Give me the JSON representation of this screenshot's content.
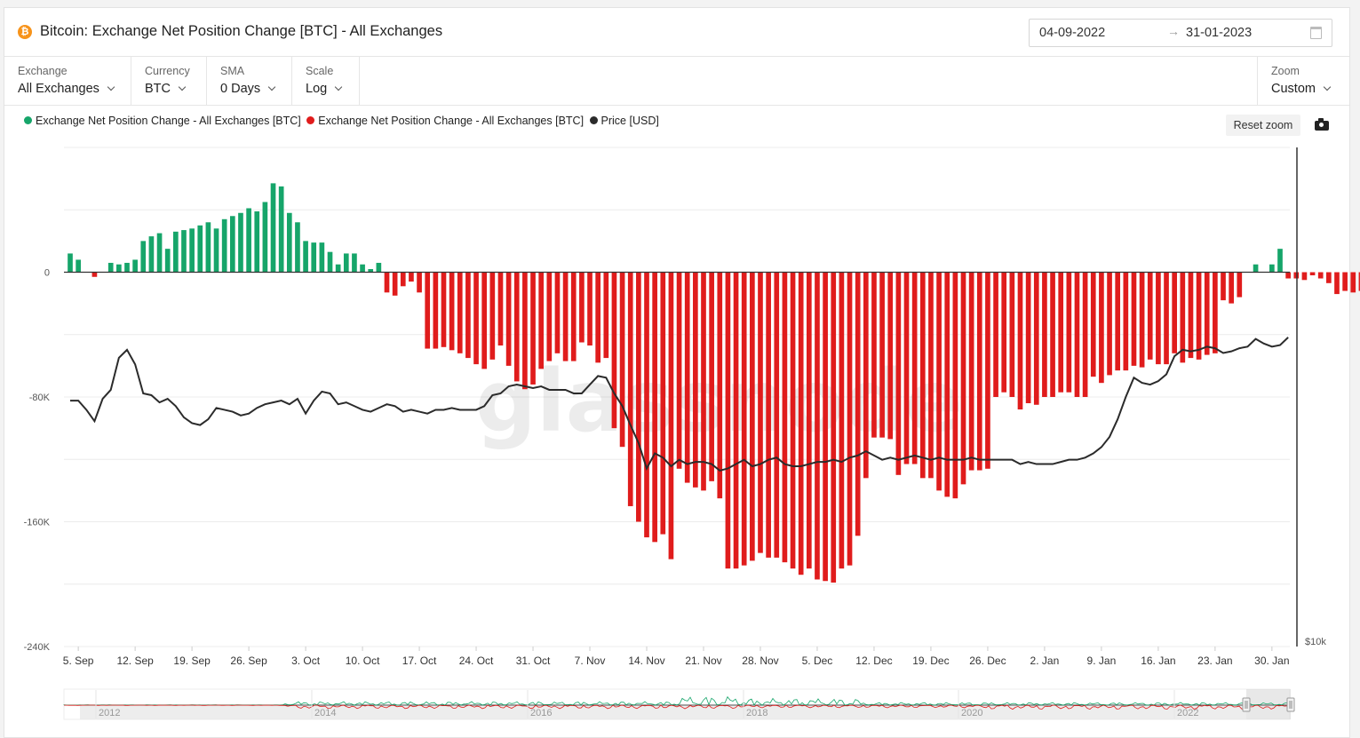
{
  "header": {
    "title": "Bitcoin: Exchange Net Position Change [BTC] - All Exchanges",
    "icon": "bitcoin-icon",
    "date_start": "04-09-2022",
    "date_arrow": "→",
    "date_end": "31-01-2023"
  },
  "controls": {
    "exchange": {
      "label": "Exchange",
      "value": "All Exchanges"
    },
    "currency": {
      "label": "Currency",
      "value": "BTC"
    },
    "sma": {
      "label": "SMA",
      "value": "0 Days"
    },
    "scale": {
      "label": "Scale",
      "value": "Log"
    },
    "zoom": {
      "label": "Zoom",
      "value": "Custom"
    }
  },
  "toolbar": {
    "reset_zoom": "Reset zoom",
    "camera": "camera-icon"
  },
  "watermark": "glassnode",
  "colors": {
    "positive": "#16a56a",
    "negative": "#e01c1c",
    "price": "#2b2b2b",
    "bitcoin": "#f7931a"
  },
  "chart_data": {
    "type": "bar",
    "title": "Bitcoin: Exchange Net Position Change [BTC] - All Exchanges",
    "legend": [
      "Exchange Net Position Change - All Exchanges [BTC]",
      "Exchange Net Position Change - All Exchanges [BTC]",
      "Price [USD]"
    ],
    "legend_position": "top-left",
    "x_ticks": [
      "5. Sep",
      "12. Sep",
      "19. Sep",
      "26. Sep",
      "3. Oct",
      "10. Oct",
      "17. Oct",
      "24. Oct",
      "31. Oct",
      "7. Nov",
      "14. Nov",
      "21. Nov",
      "28. Nov",
      "5. Dec",
      "12. Dec",
      "19. Dec",
      "26. Dec",
      "2. Jan",
      "9. Jan",
      "16. Jan",
      "23. Jan",
      "30. Jan"
    ],
    "x_start": "2022-09-04",
    "x_end": "2023-01-31",
    "y_ticks": [
      0,
      -80000,
      -160000,
      -240000
    ],
    "y_tick_labels": [
      "0",
      "-80K",
      "-160K",
      "-240K"
    ],
    "ylim": [
      -240000,
      80000
    ],
    "right_axis_label": "$10k",
    "price_scale": "log",
    "grid": true,
    "series": [
      {
        "name": "Exchange Net Position Change - All Exchanges [BTC]",
        "color": "#16a56a",
        "sign": "positive"
      },
      {
        "name": "Exchange Net Position Change - All Exchanges [BTC]",
        "color": "#e01c1c",
        "sign": "negative"
      }
    ],
    "net_position": [
      12000,
      8000,
      0,
      -3000,
      0,
      6000,
      5000,
      6000,
      8000,
      20000,
      23000,
      25000,
      15000,
      26000,
      27000,
      28000,
      30000,
      32000,
      28000,
      34000,
      36000,
      38000,
      41000,
      39000,
      45000,
      57000,
      55000,
      38000,
      32000,
      20000,
      19000,
      19000,
      13000,
      5000,
      12000,
      12000,
      5000,
      2000,
      6000,
      -13000,
      -15000,
      -9000,
      -6000,
      -13000,
      -49000,
      -49000,
      -48000,
      -50000,
      -52000,
      -55000,
      -59000,
      -62000,
      -56000,
      -47000,
      -60000,
      -70000,
      -75000,
      -72000,
      -62000,
      -57000,
      -52000,
      -57000,
      -57000,
      -45000,
      -47000,
      -58000,
      -55000,
      -100000,
      -112000,
      -150000,
      -160000,
      -170000,
      -173000,
      -168000,
      -184000,
      -126000,
      -135000,
      -138000,
      -140000,
      -134000,
      -145000,
      -190000,
      -190000,
      -188000,
      -185000,
      -180000,
      -183000,
      -183000,
      -186000,
      -190000,
      -194000,
      -190000,
      -197000,
      -198000,
      -199000,
      -190000,
      -188000,
      -169000,
      -132000,
      -106000,
      -106000,
      -107000,
      -130000,
      -123000,
      -123000,
      -132000,
      -132000,
      -140000,
      -144000,
      -145000,
      -136000,
      -127000,
      -127000,
      -126000,
      -80000,
      -77000,
      -80000,
      -88000,
      -84000,
      -85000,
      -80000,
      -80000,
      -77000,
      -77000,
      -80000,
      -80000,
      -67000,
      -71000,
      -66000,
      -63000,
      -63000,
      -60000,
      -61000,
      -56000,
      -59000,
      -59000,
      -52000,
      -58000,
      -55000,
      -56000,
      -53000,
      -52000,
      -18000,
      -20000,
      -16000,
      0,
      5000,
      0,
      5000,
      15000,
      -4000,
      -4000,
      -5000,
      -2000,
      -4000,
      -7000,
      -14000,
      -12000,
      -13000,
      -12000,
      -16000,
      -16000
    ],
    "price_usd": [
      19800,
      19800,
      19300,
      18700,
      19900,
      20400,
      22300,
      22800,
      21900,
      20200,
      20100,
      19700,
      19900,
      19500,
      18900,
      18600,
      18500,
      18800,
      19400,
      19300,
      19200,
      19000,
      19100,
      19400,
      19600,
      19700,
      19800,
      19600,
      19900,
      19100,
      19800,
      20300,
      20200,
      19600,
      19700,
      19500,
      19300,
      19200,
      19400,
      19600,
      19500,
      19200,
      19300,
      19200,
      19100,
      19300,
      19300,
      19400,
      19300,
      19300,
      19300,
      19500,
      20100,
      20200,
      20600,
      20700,
      20600,
      20500,
      20600,
      20400,
      20400,
      20400,
      20200,
      20200,
      20700,
      21200,
      21100,
      20200,
      19500,
      18500,
      17600,
      16400,
      17100,
      16900,
      16500,
      16800,
      16600,
      16700,
      16700,
      16600,
      16300,
      16400,
      16600,
      16800,
      16500,
      16600,
      16800,
      16900,
      16600,
      16500,
      16500,
      16600,
      16700,
      16700,
      16800,
      16700,
      16900,
      17000,
      17200,
      17000,
      16800,
      16900,
      16800,
      16900,
      17000,
      16900,
      16800,
      16900,
      16800,
      16800,
      16800,
      16900,
      16800,
      16800,
      16800,
      16800,
      16800,
      16600,
      16700,
      16600,
      16600,
      16600,
      16700,
      16800,
      16800,
      16900,
      17100,
      17400,
      17900,
      18800,
      20000,
      21100,
      20800,
      20700,
      20900,
      21300,
      22400,
      22800,
      22700,
      22800,
      23000,
      22900,
      22600,
      22700,
      22900,
      23000,
      23500,
      23200,
      23000,
      23100,
      23600
    ],
    "price_scale_log": true,
    "price_axis_max_label": "$10k"
  },
  "navigator": {
    "labels": [
      "2012",
      "2014",
      "2016",
      "2018",
      "2020",
      "2022"
    ]
  }
}
